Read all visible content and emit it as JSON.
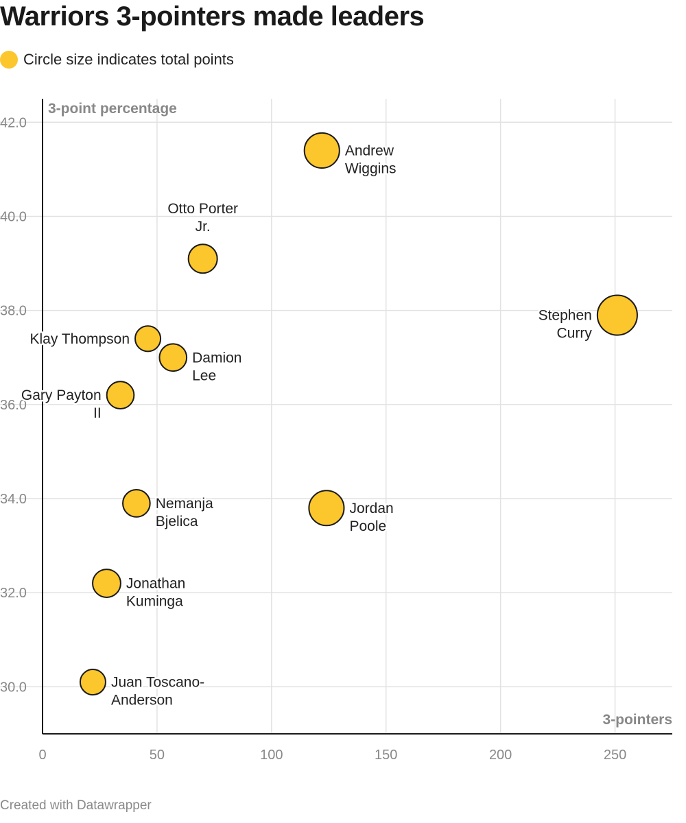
{
  "title": "Warriors 3-pointers made leaders",
  "legend_text": "Circle size indicates total points",
  "footer": "Created with Datawrapper",
  "colors": {
    "bubble": "#fcc62d",
    "stroke": "#1a1a1a",
    "grid": "#e2e2e2",
    "axis": "#1a1a1a"
  },
  "chart_data": {
    "type": "scatter",
    "title": "Warriors 3-pointers made leaders",
    "xlabel": "3-pointers",
    "ylabel": "3-point percentage",
    "xlim": [
      0,
      275
    ],
    "ylim": [
      29,
      42.5
    ],
    "x_ticks": [
      0,
      50,
      100,
      150,
      200,
      250
    ],
    "y_ticks": [
      30.0,
      32.0,
      34.0,
      36.0,
      38.0,
      40.0,
      42.0
    ],
    "grid": true,
    "points": [
      {
        "name": "Stephen Curry",
        "label_lines": [
          "Stephen",
          "Curry"
        ],
        "x": 251,
        "y": 37.9,
        "size": 3,
        "label_side": "left"
      },
      {
        "name": "Andrew Wiggins",
        "label_lines": [
          "Andrew",
          "Wiggins"
        ],
        "x": 122,
        "y": 41.4,
        "size": 2,
        "label_side": "right"
      },
      {
        "name": "Jordan Poole",
        "label_lines": [
          "Jordan",
          "Poole"
        ],
        "x": 124,
        "y": 33.8,
        "size": 2,
        "label_side": "right"
      },
      {
        "name": "Otto Porter Jr.",
        "label_lines": [
          "Otto Porter",
          "Jr."
        ],
        "x": 70,
        "y": 39.1,
        "size": 1,
        "label_side": "top"
      },
      {
        "name": "Klay Thompson",
        "label_lines": [
          "Klay Thompson"
        ],
        "x": 46,
        "y": 37.4,
        "size": 0.6,
        "label_side": "left"
      },
      {
        "name": "Damion Lee",
        "label_lines": [
          "Damion",
          "Lee"
        ],
        "x": 57,
        "y": 37.0,
        "size": 0.8,
        "label_side": "right"
      },
      {
        "name": "Gary Payton II",
        "label_lines": [
          "Gary Payton",
          "II"
        ],
        "x": 34,
        "y": 36.2,
        "size": 0.8,
        "label_side": "left"
      },
      {
        "name": "Nemanja Bjelica",
        "label_lines": [
          "Nemanja",
          "Bjelica"
        ],
        "x": 41,
        "y": 33.9,
        "size": 0.8,
        "label_side": "right"
      },
      {
        "name": "Jonathan Kuminga",
        "label_lines": [
          "Jonathan",
          "Kuminga"
        ],
        "x": 28,
        "y": 32.2,
        "size": 0.9,
        "label_side": "right"
      },
      {
        "name": "Juan Toscano-Anderson",
        "label_lines": [
          "Juan Toscano-",
          "Anderson"
        ],
        "x": 22,
        "y": 30.1,
        "size": 0.6,
        "label_side": "right"
      }
    ]
  }
}
